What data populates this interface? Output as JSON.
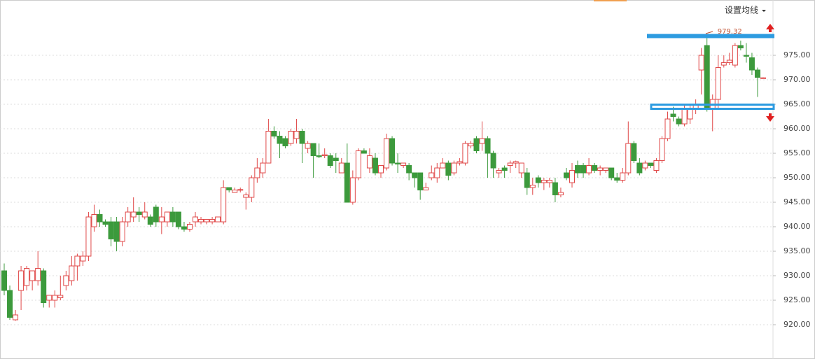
{
  "toolbar": {
    "button": "设置均线"
  },
  "chart_data": {
    "type": "candlestick",
    "ylim": [
      913,
      986.29
    ],
    "yticks": [
      {
        "value": 920,
        "label": "920.00"
      },
      {
        "value": 925,
        "label": "925.00"
      },
      {
        "value": 930,
        "label": "930.00"
      },
      {
        "value": 935,
        "label": "935.00"
      },
      {
        "value": 940,
        "label": "940.00"
      },
      {
        "value": 945,
        "label": "945.00"
      },
      {
        "value": 950,
        "label": "950.00"
      },
      {
        "value": 955,
        "label": "955.00"
      },
      {
        "value": 960,
        "label": "960.00"
      },
      {
        "value": 965,
        "label": "965.00"
      },
      {
        "value": 970,
        "label": "970.00"
      },
      {
        "value": 975,
        "label": "975.00"
      }
    ],
    "grid": true,
    "up_color": "#e04848",
    "down_color": "#3c9a3c",
    "open": [
      931,
      927,
      921,
      927,
      928,
      929,
      929,
      931,
      925,
      925,
      925.5,
      928,
      929,
      932,
      933,
      934,
      940,
      942.5,
      941,
      941,
      941,
      937,
      941,
      942,
      943,
      942,
      942,
      944,
      941,
      941,
      943,
      943,
      940,
      939.5,
      941,
      941,
      941,
      941,
      941,
      941,
      948,
      947,
      947.5,
      946,
      946,
      950,
      951,
      953,
      959.5,
      958.5,
      958,
      957,
      958,
      959.5,
      956,
      957,
      954.5,
      954.5,
      954.5,
      954,
      951,
      953,
      945,
      950,
      955.5,
      952,
      954,
      951,
      952,
      958,
      953,
      952.5,
      952.5,
      951,
      951,
      947.5,
      950,
      950,
      952,
      953,
      951,
      953,
      953,
      956.5,
      958,
      957,
      958,
      955,
      951,
      952,
      952.5,
      953,
      951,
      951,
      948,
      950,
      949,
      949,
      949,
      946.5,
      951,
      949,
      952.5,
      952.5,
      951,
      952.5,
      951.5,
      951.5,
      952,
      950,
      949.5,
      951,
      957,
      953,
      952,
      953,
      951.5,
      953.5,
      958,
      963,
      962,
      961,
      962,
      964,
      972,
      977,
      964,
      966,
      973,
      973.5,
      973,
      977,
      975,
      974.5,
      972,
      970.3
    ],
    "high": [
      932.5,
      928,
      923,
      932,
      932,
      931,
      935,
      931.5,
      926,
      927,
      930,
      931,
      934,
      934.5,
      935,
      943,
      944.5,
      943.5,
      941.5,
      942,
      942,
      942,
      944,
      946,
      944,
      945,
      942.5,
      944.5,
      944,
      943,
      944,
      943,
      941,
      941,
      943,
      942,
      941.5,
      942,
      942,
      949.5,
      948,
      948,
      948,
      947,
      950.5,
      954,
      954,
      962,
      960.5,
      959.5,
      958.5,
      960,
      962,
      960,
      957.5,
      957,
      957,
      956,
      955,
      955,
      954,
      957,
      951.5,
      956,
      956,
      956,
      955,
      952.5,
      959,
      958.5,
      955,
      953,
      953,
      951,
      951,
      949,
      952.5,
      953,
      954,
      953.5,
      953.5,
      954,
      957.5,
      957.5,
      958.5,
      961.5,
      958.5,
      955.5,
      952,
      952.5,
      953.5,
      953.5,
      953,
      952,
      950,
      950.5,
      950,
      950,
      950,
      948,
      952,
      953,
      953.5,
      953,
      954,
      953,
      952.5,
      952,
      952,
      951,
      952,
      961.5,
      957.5,
      954,
      953.5,
      953,
      954,
      958.5,
      963.5,
      964.5,
      962.5,
      965,
      965,
      966,
      976.5,
      979.32,
      967,
      975,
      975,
      975.5,
      977.5,
      978,
      977.5,
      975.5,
      972.5,
      970.5
    ],
    "low": [
      926,
      921,
      920.8,
      923,
      927,
      927,
      928,
      923.5,
      923.5,
      923.5,
      925,
      927,
      928,
      929,
      932,
      933,
      939,
      940,
      940,
      936,
      935,
      936,
      940,
      941,
      941,
      941.5,
      940,
      940,
      938.5,
      940,
      940,
      939.5,
      939,
      939,
      940,
      940.5,
      940.5,
      940.5,
      941,
      940.5,
      947,
      947,
      947,
      943.5,
      945,
      949,
      950,
      953,
      958,
      954,
      956,
      956.5,
      957,
      953,
      955,
      950,
      954,
      954,
      952,
      951,
      951,
      945,
      944.5,
      949.5,
      955,
      951,
      950.5,
      950,
      951.5,
      952.5,
      951,
      952,
      949.5,
      948,
      945.5,
      947.5,
      949.5,
      949,
      952,
      949.5,
      950.5,
      952.5,
      952.5,
      956,
      955,
      955.5,
      950,
      950,
      950,
      950,
      951,
      952,
      950,
      946.5,
      946.5,
      948,
      947.5,
      948,
      945,
      946,
      949.5,
      948,
      950,
      950,
      950.5,
      951,
      950.5,
      951,
      949.5,
      949,
      949,
      950.5,
      953,
      950.5,
      951.5,
      952,
      951,
      953,
      957.5,
      961.5,
      960.5,
      960.5,
      961,
      963,
      967,
      963.5,
      959.5,
      964,
      972.5,
      973,
      972.5,
      976,
      973.5,
      971,
      966.5,
      970.3
    ],
    "close": [
      927,
      921.5,
      922,
      931,
      931.5,
      931,
      931.5,
      924.5,
      926,
      926,
      926,
      930,
      932,
      934,
      934,
      942,
      942.5,
      941,
      940.5,
      937.5,
      937,
      941,
      943,
      943,
      942.5,
      943,
      940.5,
      941,
      942,
      943,
      941,
      940,
      939.5,
      940.5,
      942,
      941.5,
      941.5,
      941.5,
      942,
      948,
      947.5,
      947.5,
      947.6,
      946.5,
      950,
      952,
      953,
      959.5,
      958.5,
      957,
      956.5,
      959.5,
      959.5,
      957,
      957,
      954.5,
      954.3,
      954.7,
      952.5,
      953.5,
      953,
      945,
      950,
      955.5,
      955,
      954.5,
      951,
      952.5,
      958,
      953,
      952.8,
      953,
      951,
      950,
      947.5,
      948,
      951,
      952,
      953,
      950.5,
      953,
      953.3,
      957,
      957,
      955.5,
      958,
      955,
      952,
      951.5,
      951.5,
      953,
      953.3,
      953,
      948,
      948.5,
      949,
      949.5,
      949.5,
      946.5,
      947,
      950,
      951.5,
      951,
      951,
      952.5,
      951.5,
      952,
      952,
      950,
      949.5,
      951,
      957,
      953.5,
      951,
      953,
      952.5,
      953.5,
      958,
      962,
      962.5,
      961,
      964,
      964,
      965,
      975,
      964,
      966,
      972.5,
      973.5,
      974,
      977,
      976.5,
      974.8,
      972,
      970.5,
      970.4
    ]
  }
}
